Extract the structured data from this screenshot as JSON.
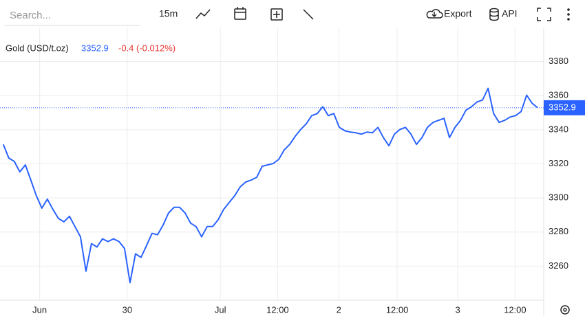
{
  "toolbar": {
    "search_placeholder": "Search...",
    "interval": "15m",
    "export": "Export",
    "api": "API"
  },
  "chart_data": {
    "type": "line",
    "title": "Gold (USD/t.oz)",
    "last_value": 3352.9,
    "change": "-0.4 (-0.012%)",
    "series": [
      {
        "name": "Gold (USD/t.oz)",
        "color": "#2962ff",
        "values": [
          3331.4,
          3323.4,
          3321.4,
          3315.3,
          3319.4,
          3310.5,
          3301.3,
          3294,
          3299.3,
          3293.3,
          3288,
          3286,
          3289.2,
          3283.2,
          3277.2,
          3257,
          3273.2,
          3271.2,
          3276,
          3274.4,
          3276,
          3274.4,
          3270.4,
          3250.3,
          3267.2,
          3265.1,
          3272,
          3279.2,
          3278.4,
          3284,
          3291.2,
          3294.5,
          3294.5,
          3291.2,
          3285.2,
          3283.2,
          3277.2,
          3283.2,
          3283.2,
          3287.2,
          3293.3,
          3297.3,
          3301.3,
          3306.5,
          3309.3,
          3310.5,
          3312.1,
          3318.6,
          3319.4,
          3320.2,
          3322.6,
          3328.2,
          3331.4,
          3336.2,
          3340.2,
          3343.5,
          3348.3,
          3349.5,
          3353.5,
          3348.3,
          3349.5,
          3341.4,
          3339.4,
          3338.6,
          3338.2,
          3337.4,
          3338.6,
          3338.2,
          3341.4,
          3335.4,
          3330.6,
          3337.4,
          3340.2,
          3341.4,
          3337.4,
          3331.4,
          3335.4,
          3341.4,
          3344.3,
          3345.5,
          3346.7,
          3335.4,
          3341.4,
          3345.5,
          3351.5,
          3353.5,
          3356.3,
          3357.5,
          3364.3,
          3349.5,
          3344.3,
          3345.5,
          3347.5,
          3348.3,
          3350.7,
          3360.3,
          3355.5,
          3352.9
        ]
      }
    ],
    "xlim": [
      -0.6,
      98.1
    ],
    "xticks": [
      {
        "value": 6.6,
        "label": "Jun"
      },
      {
        "value": 22.5,
        "label": "30"
      },
      {
        "value": 39.4,
        "label": "Jul"
      },
      {
        "value": 49.8,
        "label": "12:00"
      },
      {
        "value": 60.9,
        "label": "2"
      },
      {
        "value": 71.5,
        "label": "12:00"
      },
      {
        "value": 82.5,
        "label": "3"
      },
      {
        "value": 92.9,
        "label": "12:00"
      }
    ],
    "ylim": [
      3240,
      3400
    ],
    "yticks": [
      3260,
      3280,
      3300,
      3320,
      3340,
      3360,
      3380
    ],
    "grid": true
  }
}
